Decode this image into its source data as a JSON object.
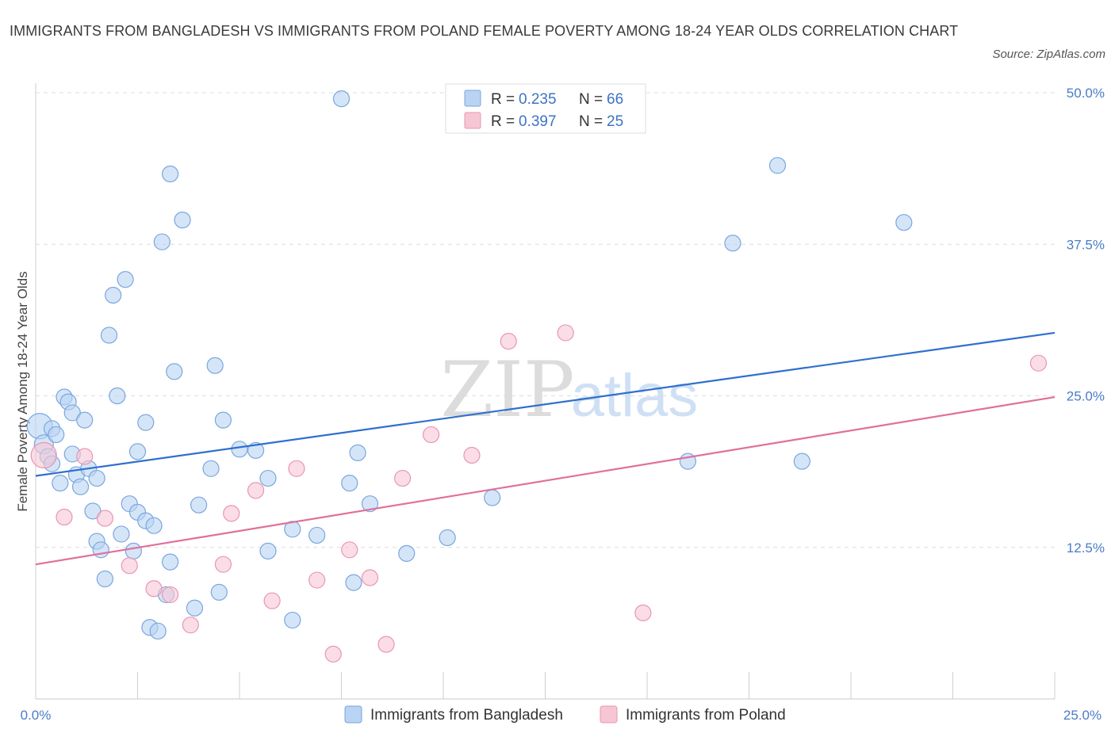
{
  "header": {
    "title": "IMMIGRANTS FROM BANGLADESH VS IMMIGRANTS FROM POLAND FEMALE POVERTY AMONG 18-24 YEAR OLDS CORRELATION CHART",
    "source": "Source: ZipAtlas.com"
  },
  "watermark": {
    "zip": "ZIP",
    "atlas": "atlas"
  },
  "colors": {
    "bangladesh_fill": "#b9d3f3",
    "bangladesh_stroke": "#7aa6de",
    "bangladesh_line": "#2f6fce",
    "poland_fill": "#f7c6d5",
    "poland_stroke": "#e996b1",
    "poland_line": "#e0709a",
    "tick_text": "#4a7cc7"
  },
  "legend": {
    "rows": [
      {
        "r_label": "R = ",
        "r_value": "0.235",
        "n_label": "N = ",
        "n_value": "66"
      },
      {
        "r_label": "R = ",
        "r_value": "0.397",
        "n_label": "N = ",
        "n_value": "25"
      }
    ]
  },
  "chart_data": {
    "type": "scatter",
    "title": "IMMIGRANTS FROM BANGLADESH VS IMMIGRANTS FROM POLAND FEMALE POVERTY AMONG 18-24 YEAR OLDS CORRELATION CHART",
    "xlabel": "",
    "ylabel": "Female Poverty Among 18-24 Year Olds",
    "xlim": [
      0,
      25
    ],
    "ylim": [
      0,
      50
    ],
    "x_tick_labels": [
      "0.0%",
      "25.0%"
    ],
    "y_tick_labels": [
      "12.5%",
      "25.0%",
      "37.5%",
      "50.0%"
    ],
    "y_ticks": [
      12.5,
      25.0,
      37.5,
      50.0
    ],
    "series": [
      {
        "name": "Immigrants from Bangladesh",
        "r": 0.235,
        "n": 66,
        "trend": {
          "x": [
            0,
            25
          ],
          "y": [
            18.4,
            30.2
          ]
        },
        "points": [
          [
            0.1,
            22.5,
            16
          ],
          [
            0.2,
            21.0,
            12
          ],
          [
            0.3,
            20.0,
            10
          ],
          [
            0.4,
            22.3,
            10
          ],
          [
            0.4,
            19.4,
            10
          ],
          [
            0.5,
            21.8,
            10
          ],
          [
            0.6,
            17.8,
            10
          ],
          [
            0.7,
            24.9,
            10
          ],
          [
            0.8,
            24.5,
            10
          ],
          [
            0.9,
            23.6,
            10
          ],
          [
            0.9,
            20.2,
            10
          ],
          [
            1.0,
            18.5,
            10
          ],
          [
            1.1,
            17.5,
            10
          ],
          [
            1.2,
            23.0,
            10
          ],
          [
            1.3,
            19.0,
            10
          ],
          [
            1.4,
            15.5,
            10
          ],
          [
            1.5,
            18.2,
            10
          ],
          [
            1.5,
            13.0,
            10
          ],
          [
            1.6,
            12.3,
            10
          ],
          [
            1.7,
            9.9,
            10
          ],
          [
            1.8,
            30.0,
            10
          ],
          [
            1.9,
            33.3,
            10
          ],
          [
            2.0,
            25.0,
            10
          ],
          [
            2.1,
            13.6,
            10
          ],
          [
            2.2,
            34.6,
            10
          ],
          [
            2.3,
            16.1,
            10
          ],
          [
            2.4,
            12.2,
            10
          ],
          [
            2.5,
            15.4,
            10
          ],
          [
            2.5,
            20.4,
            10
          ],
          [
            2.7,
            14.7,
            10
          ],
          [
            2.7,
            22.8,
            10
          ],
          [
            2.8,
            5.9,
            10
          ],
          [
            2.9,
            14.3,
            10
          ],
          [
            3.0,
            5.6,
            10
          ],
          [
            3.1,
            37.7,
            10
          ],
          [
            3.2,
            8.6,
            10
          ],
          [
            3.3,
            11.3,
            10
          ],
          [
            3.3,
            43.3,
            10
          ],
          [
            3.4,
            27.0,
            10
          ],
          [
            3.6,
            39.5,
            10
          ],
          [
            3.9,
            7.5,
            10
          ],
          [
            4.0,
            16.0,
            10
          ],
          [
            4.3,
            19.0,
            10
          ],
          [
            4.4,
            27.5,
            10
          ],
          [
            4.5,
            8.8,
            10
          ],
          [
            4.6,
            23.0,
            10
          ],
          [
            5.0,
            20.6,
            10
          ],
          [
            5.4,
            20.5,
            10
          ],
          [
            5.7,
            18.2,
            10
          ],
          [
            5.7,
            12.2,
            10
          ],
          [
            6.3,
            6.5,
            10
          ],
          [
            6.3,
            14.0,
            10
          ],
          [
            6.9,
            13.5,
            10
          ],
          [
            7.5,
            49.5,
            10
          ],
          [
            7.7,
            17.8,
            10
          ],
          [
            7.8,
            9.6,
            10
          ],
          [
            7.9,
            20.3,
            10
          ],
          [
            8.2,
            16.1,
            10
          ],
          [
            9.1,
            12.0,
            10
          ],
          [
            10.1,
            13.3,
            10
          ],
          [
            11.2,
            16.6,
            10
          ],
          [
            16.0,
            19.6,
            10
          ],
          [
            17.1,
            37.6,
            10
          ],
          [
            18.2,
            44.0,
            10
          ],
          [
            18.8,
            19.6,
            10
          ],
          [
            21.3,
            39.3,
            10
          ]
        ]
      },
      {
        "name": "Immigrants from Poland",
        "r": 0.397,
        "n": 25,
        "trend": {
          "x": [
            0,
            25
          ],
          "y": [
            11.1,
            24.9
          ]
        },
        "points": [
          [
            0.2,
            20.1,
            16
          ],
          [
            0.7,
            15.0,
            10
          ],
          [
            1.2,
            20.0,
            10
          ],
          [
            1.7,
            14.9,
            10
          ],
          [
            2.3,
            11.0,
            10
          ],
          [
            2.9,
            9.1,
            10
          ],
          [
            3.3,
            8.6,
            10
          ],
          [
            3.8,
            6.1,
            10
          ],
          [
            4.6,
            11.1,
            10
          ],
          [
            4.8,
            15.3,
            10
          ],
          [
            5.4,
            17.2,
            10
          ],
          [
            5.8,
            8.1,
            10
          ],
          [
            6.4,
            19.0,
            10
          ],
          [
            6.9,
            9.8,
            10
          ],
          [
            7.3,
            3.7,
            10
          ],
          [
            7.7,
            12.3,
            10
          ],
          [
            8.2,
            10.0,
            10
          ],
          [
            8.6,
            4.5,
            10
          ],
          [
            9.0,
            18.2,
            10
          ],
          [
            9.7,
            21.8,
            10
          ],
          [
            10.7,
            20.1,
            10
          ],
          [
            11.6,
            29.5,
            10
          ],
          [
            13.0,
            30.2,
            10
          ],
          [
            14.9,
            7.1,
            10
          ],
          [
            24.6,
            27.7,
            10
          ]
        ]
      }
    ]
  },
  "bottom_legend": {
    "items": [
      "Immigrants from Bangladesh",
      "Immigrants from Poland"
    ]
  }
}
